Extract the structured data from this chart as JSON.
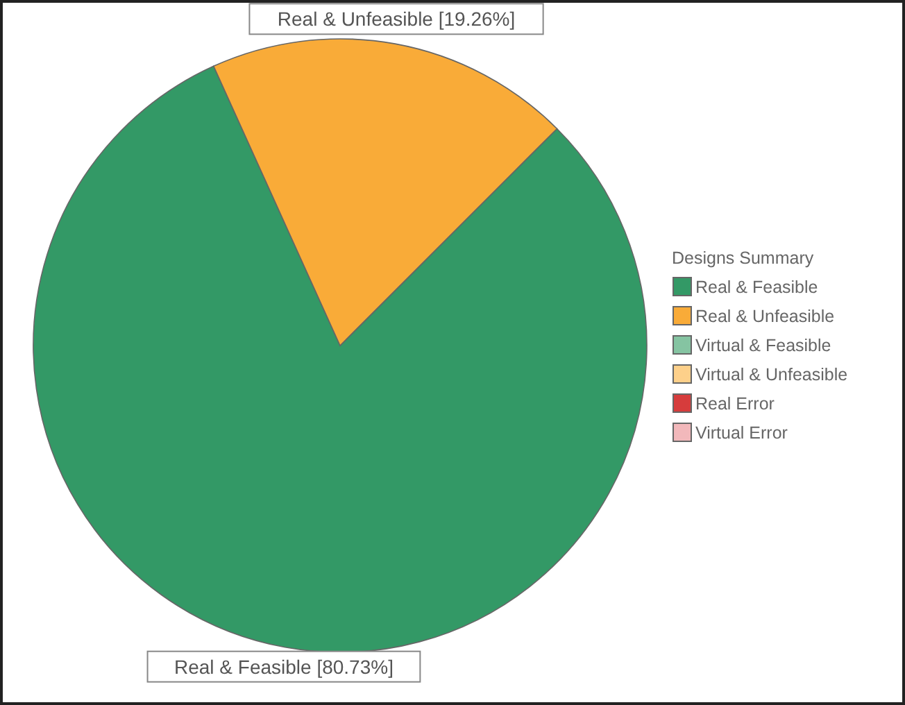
{
  "chart_data": {
    "type": "pie",
    "legend_title": "Designs Summary",
    "legend": "right",
    "categories": [
      "Real & Feasible",
      "Real & Unfeasible",
      "Virtual & Feasible",
      "Virtual & Unfeasible",
      "Real Error",
      "Virtual Error"
    ],
    "values": [
      80.73,
      19.26,
      0,
      0,
      0,
      0
    ],
    "colors": [
      "#339966",
      "#f9ab38",
      "#85c4a2",
      "#fdd08a",
      "#d63c3c",
      "#f2b8bb"
    ],
    "value_labels": [
      "Real & Feasible [80.73%]",
      "Real & Unfeasible [19.26%]",
      null,
      null,
      null,
      null
    ]
  }
}
